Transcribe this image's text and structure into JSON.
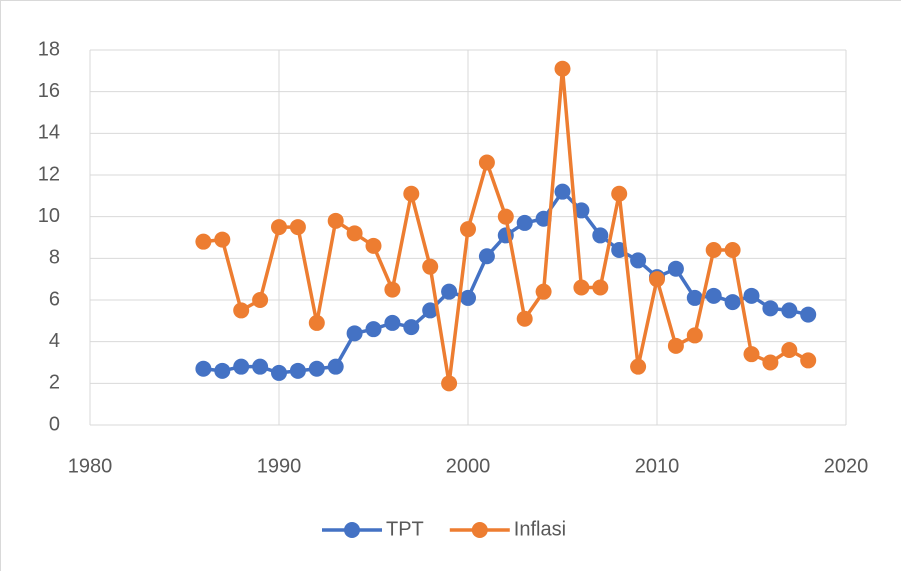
{
  "chart_data": {
    "type": "line",
    "x": [
      1986,
      1987,
      1988,
      1989,
      1990,
      1991,
      1992,
      1993,
      1994,
      1995,
      1996,
      1997,
      1998,
      1999,
      2000,
      2001,
      2002,
      2003,
      2004,
      2005,
      2006,
      2007,
      2008,
      2009,
      2010,
      2011,
      2012,
      2013,
      2014,
      2015,
      2016,
      2017,
      2018
    ],
    "series": [
      {
        "name": "TPT",
        "color": "#4472c4",
        "values": [
          2.7,
          2.6,
          2.8,
          2.8,
          2.5,
          2.6,
          2.7,
          2.8,
          4.4,
          4.6,
          4.9,
          4.7,
          5.5,
          6.4,
          6.1,
          8.1,
          9.1,
          9.7,
          9.9,
          11.2,
          10.3,
          9.1,
          8.4,
          7.9,
          7.1,
          7.5,
          6.1,
          6.2,
          5.9,
          6.2,
          5.6,
          5.5,
          5.3
        ]
      },
      {
        "name": "Inflasi",
        "color": "#ed7d31",
        "values": [
          8.8,
          8.9,
          5.5,
          6.0,
          9.5,
          9.5,
          4.9,
          9.8,
          9.2,
          8.6,
          6.5,
          11.1,
          7.6,
          2.0,
          9.4,
          12.6,
          10.0,
          5.1,
          6.4,
          17.1,
          6.6,
          6.6,
          11.1,
          2.8,
          7.0,
          3.8,
          4.3,
          8.4,
          8.4,
          3.4,
          3.0,
          3.6,
          3.1
        ]
      }
    ],
    "xlim": [
      1980,
      2020
    ],
    "xticks": [
      1980,
      1990,
      2000,
      2010,
      2020
    ],
    "ylim": [
      0,
      18
    ],
    "yticks": [
      0,
      2,
      4,
      6,
      8,
      10,
      12,
      14,
      16,
      18
    ],
    "grid": true,
    "legend": "bottom"
  }
}
